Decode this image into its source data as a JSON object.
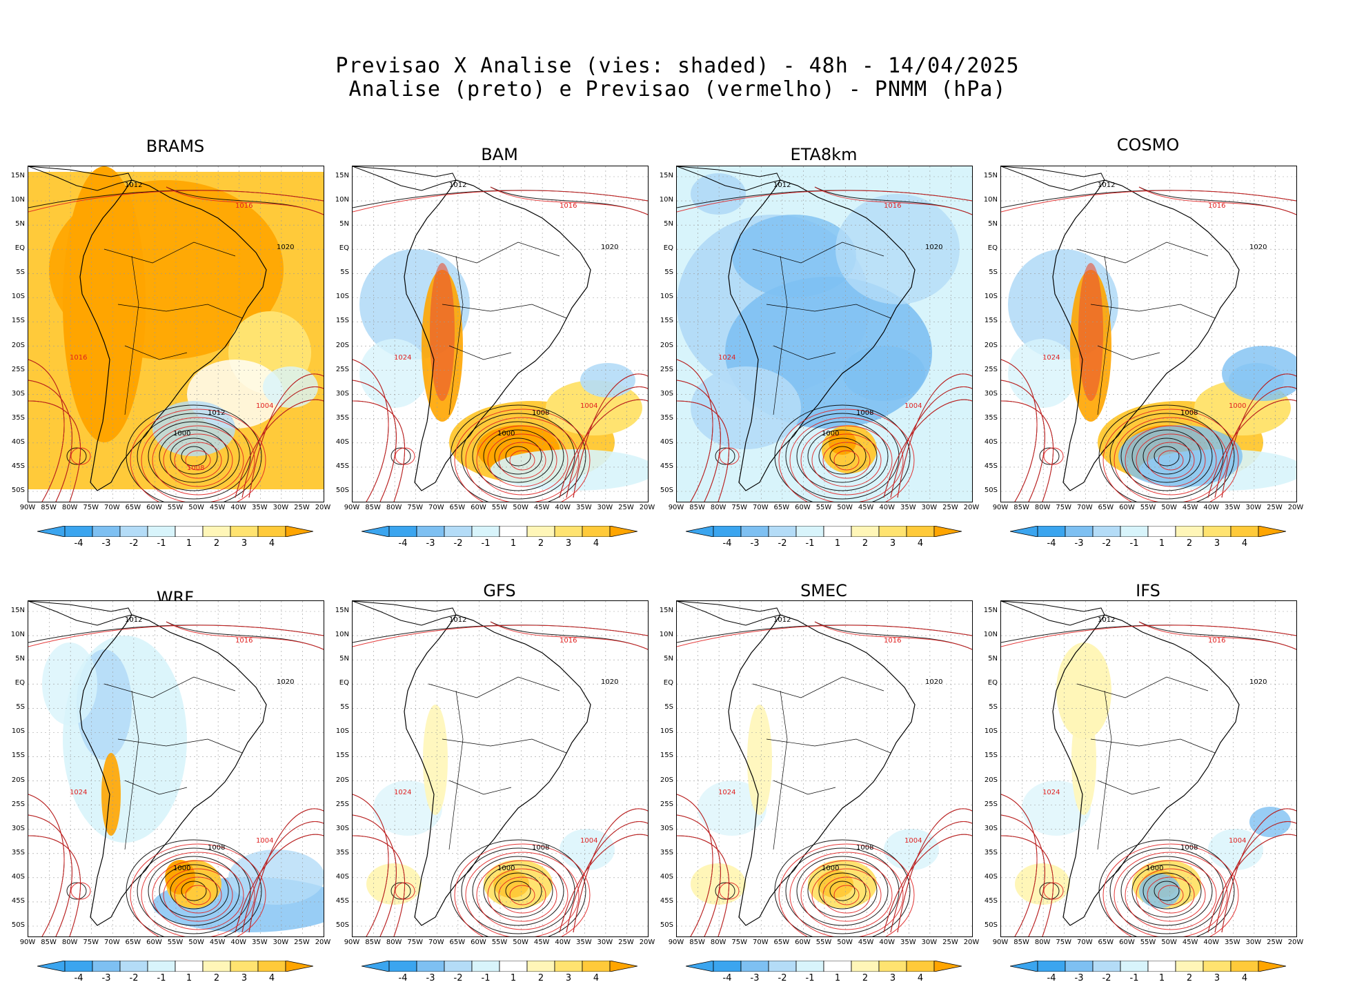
{
  "title_line1": "Previsao X Analise (vies: shaded) - 48h - 14/04/2025",
  "title_line2": "Analise (preto) e Previsao (vermelho) - PNMM (hPa)",
  "lat_labels": [
    "15N",
    "10N",
    "5N",
    "EQ",
    "5S",
    "10S",
    "15S",
    "20S",
    "25S",
    "30S",
    "35S",
    "40S",
    "45S",
    "50S"
  ],
  "lon_labels": [
    "90W",
    "85W",
    "80W",
    "75W",
    "70W",
    "65W",
    "60W",
    "55W",
    "50W",
    "45W",
    "40W",
    "35W",
    "30W",
    "25W",
    "20W"
  ],
  "colorbar_labels": [
    "-4",
    "-3",
    "-2",
    "-1",
    "1",
    "2",
    "3",
    "4"
  ],
  "colors": {
    "bias_neg4": "#3ba5ef",
    "bias_neg3": "#7ec0f2",
    "bias_neg2": "#b4dcf7",
    "bias_neg1": "#d8f4fb",
    "bias_pos1": "#fff6b8",
    "bias_pos2": "#ffe370",
    "bias_pos3": "#ffca3a",
    "bias_pos4": "#ffa500",
    "analysis_contour": "#000000",
    "forecast_contour": "#e02020"
  },
  "panels": [
    {
      "name": "BRAMS",
      "bias": "warm",
      "labels": [
        "1012",
        "1016",
        "1020",
        "1016",
        "1012",
        "1004",
        "1000",
        "1008"
      ]
    },
    {
      "name": "BAM",
      "bias": "mixed",
      "labels": [
        "1012",
        "1016",
        "1020",
        "1024",
        "1008",
        "1004",
        "1000"
      ]
    },
    {
      "name": "ETA8km",
      "bias": "cold",
      "labels": [
        "1012",
        "1016",
        "1020",
        "1024",
        "1008",
        "1004",
        "1000"
      ]
    },
    {
      "name": "COSMO",
      "bias": "mixed",
      "labels": [
        "1012",
        "1016",
        "1020",
        "1024",
        "1008",
        "1000"
      ]
    },
    {
      "name": "WRF",
      "bias": "coolish",
      "labels": [
        "1012",
        "1016",
        "1020",
        "1024",
        "1008",
        "1004",
        "1000"
      ]
    },
    {
      "name": "GFS",
      "bias": "neutral",
      "labels": [
        "1012",
        "1016",
        "1020",
        "1024",
        "1008",
        "1004",
        "1000"
      ]
    },
    {
      "name": "SMEC",
      "bias": "neutral",
      "labels": [
        "1012",
        "1016",
        "1020",
        "1024",
        "1008",
        "1004",
        "1000"
      ]
    },
    {
      "name": "IFS",
      "bias": "neutral",
      "labels": [
        "1012",
        "1016",
        "1020",
        "1024",
        "1008",
        "1004",
        "1000"
      ]
    }
  ]
}
